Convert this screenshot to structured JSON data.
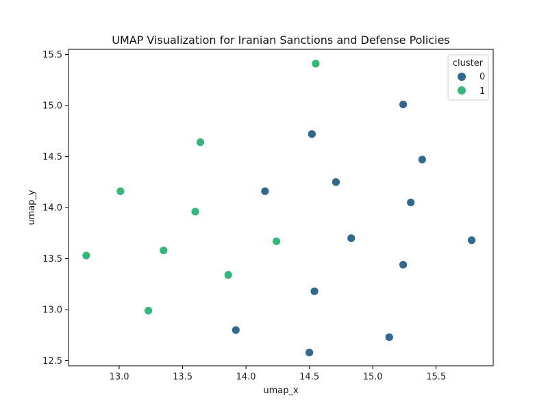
{
  "chart_data": {
    "type": "scatter",
    "title": "UMAP Visualization for Iranian Sanctions and Defense Policies",
    "xlabel": "umap_x",
    "ylabel": "umap_y",
    "xlim": [
      12.6,
      15.95
    ],
    "ylim": [
      12.45,
      15.55
    ],
    "xticks": [
      "13.0",
      "13.5",
      "14.0",
      "14.5",
      "15.0",
      "15.5"
    ],
    "yticks": [
      "12.5",
      "13.0",
      "13.5",
      "14.0",
      "14.5",
      "15.0",
      "15.5"
    ],
    "grid": false,
    "legend": {
      "title": "cluster",
      "placement": "top-right"
    },
    "series": [
      {
        "name": "0",
        "color": "#30688e",
        "points": [
          {
            "x": 15.24,
            "y": 15.01
          },
          {
            "x": 14.52,
            "y": 14.72
          },
          {
            "x": 15.39,
            "y": 14.47
          },
          {
            "x": 14.71,
            "y": 14.25
          },
          {
            "x": 14.15,
            "y": 14.16
          },
          {
            "x": 15.3,
            "y": 14.05
          },
          {
            "x": 14.83,
            "y": 13.7
          },
          {
            "x": 15.78,
            "y": 13.68
          },
          {
            "x": 15.24,
            "y": 13.44
          },
          {
            "x": 14.54,
            "y": 13.18
          },
          {
            "x": 13.92,
            "y": 12.8
          },
          {
            "x": 15.13,
            "y": 12.73
          },
          {
            "x": 14.5,
            "y": 12.58
          }
        ]
      },
      {
        "name": "1",
        "color": "#35b779",
        "points": [
          {
            "x": 14.55,
            "y": 15.41
          },
          {
            "x": 13.64,
            "y": 14.64
          },
          {
            "x": 13.01,
            "y": 14.16
          },
          {
            "x": 13.6,
            "y": 13.96
          },
          {
            "x": 14.24,
            "y": 13.67
          },
          {
            "x": 13.35,
            "y": 13.58
          },
          {
            "x": 12.74,
            "y": 13.53
          },
          {
            "x": 13.86,
            "y": 13.34
          },
          {
            "x": 13.23,
            "y": 12.99
          }
        ]
      }
    ]
  }
}
